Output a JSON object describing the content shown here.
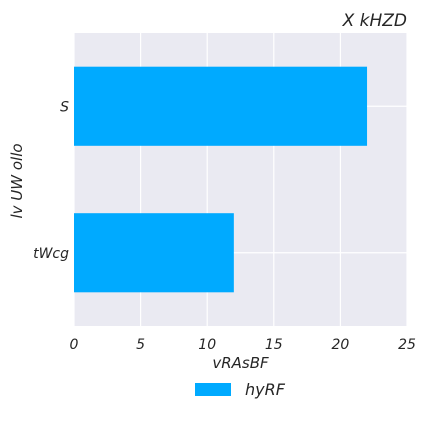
{
  "chart_data": {
    "type": "bar",
    "orientation": "horizontal",
    "title": "X kHZD",
    "xlabel": "vRAsBF",
    "ylabel": "lv UW ollo",
    "categories": [
      "S",
      "tWcg"
    ],
    "series": [
      {
        "name": "hyRF",
        "values": [
          22,
          12
        ],
        "color": "#00aaff"
      }
    ],
    "xlim": [
      0,
      25
    ],
    "xticks": [
      0,
      5,
      10,
      15,
      20,
      25
    ],
    "grid": true,
    "legend_position": "bottom-center",
    "colors": {
      "plot_background": "#eaeaf2",
      "grid": "#ffffff",
      "text": "#262626"
    }
  }
}
